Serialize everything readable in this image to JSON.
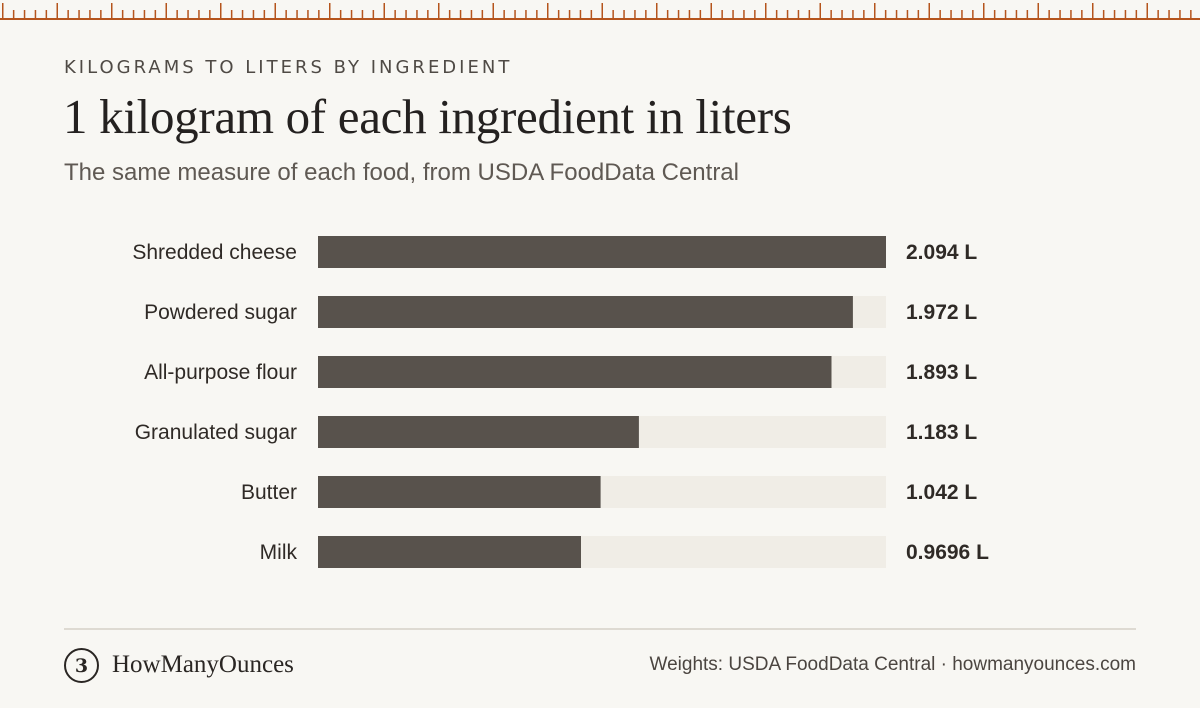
{
  "eyebrow": "KILOGRAMS TO LITERS BY INGREDIENT",
  "title": "1 kilogram of each ingredient in liters",
  "subtitle": "The same measure of each food, from USDA FoodData Central",
  "chart_data": {
    "type": "bar",
    "orientation": "horizontal",
    "categories": [
      "Shredded cheese",
      "Powdered sugar",
      "All-purpose flour",
      "Granulated sugar",
      "Butter",
      "Milk"
    ],
    "values": [
      2.094,
      1.972,
      1.893,
      1.183,
      1.042,
      0.9696
    ],
    "value_labels": [
      "2.094 L",
      "1.972 L",
      "1.893 L",
      "1.183 L",
      "1.042 L",
      "0.9696 L"
    ],
    "xlim": [
      0,
      2.094
    ],
    "grid": false,
    "colors": {
      "bar": "#58524c",
      "track": "#f0ede6"
    }
  },
  "footer": {
    "logo_icon": "scale-icon",
    "logo_glyph": "3",
    "brand": "HowManyOunces",
    "source": "Weights: USDA FoodData Central · howmanyounces.com"
  },
  "colors": {
    "accent": "#b5541c",
    "background": "#f8f7f3"
  }
}
